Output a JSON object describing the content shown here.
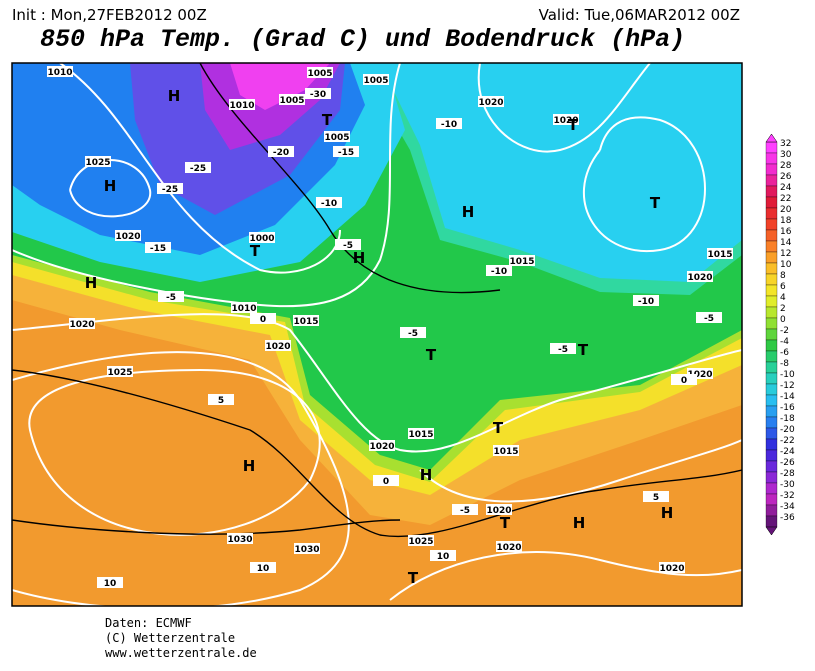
{
  "header": {
    "init": "Init : Mon,27FEB2012 00Z",
    "valid": "Valid: Tue,06MAR2012 00Z",
    "title": "850 hPa Temp. (Grad C) und Bodendruck (hPa)"
  },
  "map": {
    "labels": [
      "1010",
      "1005",
      "1005",
      "1010",
      "1005",
      "1005",
      "1020",
      "1025",
      "1020",
      "1000",
      "1010",
      "1015",
      "1020",
      "1020",
      "1015",
      "1015",
      "1020",
      "1025",
      "1030",
      "1030",
      "1020",
      "1015",
      "1015",
      "1025",
      "1020",
      "1020",
      "1020",
      "1020",
      "1020",
      "-30",
      "-25",
      "-25",
      "-20",
      "-15",
      "-15",
      "-10",
      "-10",
      "-10",
      "-5",
      "-5",
      "-5",
      "-5",
      "0",
      "0",
      "5",
      "5",
      "-5",
      "10",
      "10",
      "10",
      "0",
      "-10",
      "-5",
      "H",
      "H",
      "H",
      "H",
      "T",
      "T",
      "T",
      "T",
      "T",
      "T",
      "H",
      "H",
      "H",
      "T",
      "H",
      "T",
      "H",
      "T"
    ]
  },
  "colorbar": {
    "ticks": [
      32,
      30,
      28,
      26,
      24,
      22,
      20,
      18,
      16,
      14,
      12,
      10,
      8,
      6,
      4,
      2,
      0,
      -2,
      -4,
      -6,
      -8,
      -10,
      -12,
      -14,
      -16,
      -18,
      -20,
      -22,
      -24,
      -26,
      -28,
      -30,
      -32,
      -34,
      -36
    ]
  },
  "footer": {
    "lines": [
      "Daten: ECMWF",
      "(C) Wetterzentrale",
      "www.wetterzentrale.de"
    ]
  }
}
